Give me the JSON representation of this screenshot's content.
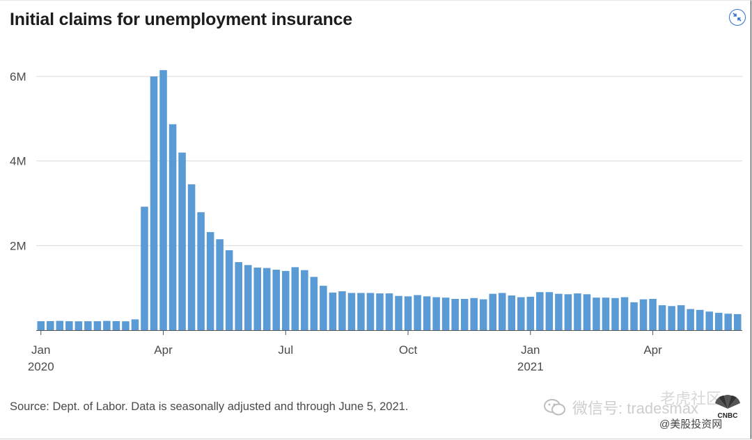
{
  "title": "Initial claims for unemployment insurance",
  "source": "Source: Dept. of Labor. Data is seasonally adjusted and through June 5, 2021.",
  "watermark": {
    "wechat": "微信号: tradesmax",
    "community": "老虎社区",
    "site": "@美股投资网",
    "logo": "CNBC"
  },
  "colors": {
    "bar": "#5b9bd5",
    "grid": "#d9d9d9",
    "text": "#4a4a4a",
    "accent": "#2f6fd0"
  },
  "chart_data": {
    "type": "bar",
    "title": "Initial claims for unemployment insurance",
    "xlabel": "",
    "ylabel": "",
    "ylim": [
      0,
      6000000
    ],
    "yticks": [
      {
        "value": 2000000,
        "label": "2M"
      },
      {
        "value": 4000000,
        "label": "4M"
      },
      {
        "value": 6000000,
        "label": "6M"
      }
    ],
    "xticks": [
      {
        "index": 0,
        "label": "Jan",
        "sublabel": "2020"
      },
      {
        "index": 13,
        "label": "Apr",
        "sublabel": ""
      },
      {
        "index": 26,
        "label": "Jul",
        "sublabel": ""
      },
      {
        "index": 39,
        "label": "Oct",
        "sublabel": ""
      },
      {
        "index": 52,
        "label": "Jan",
        "sublabel": "2021"
      },
      {
        "index": 65,
        "label": "Apr",
        "sublabel": ""
      }
    ],
    "grid": true,
    "legend": "none",
    "series": [
      {
        "values": [
          212000,
          215000,
          220000,
          212000,
          210000,
          212000,
          212000,
          219000,
          214000,
          210000,
          256000,
          2920000,
          6000000,
          6150000,
          4870000,
          4200000,
          3450000,
          2790000,
          2320000,
          2150000,
          1890000,
          1610000,
          1540000,
          1480000,
          1470000,
          1430000,
          1400000,
          1490000,
          1420000,
          1260000,
          1050000,
          890000,
          920000,
          880000,
          880000,
          880000,
          870000,
          870000,
          810000,
          800000,
          830000,
          800000,
          780000,
          770000,
          740000,
          740000,
          760000,
          730000,
          860000,
          880000,
          820000,
          780000,
          790000,
          900000,
          900000,
          860000,
          850000,
          870000,
          850000,
          770000,
          770000,
          760000,
          780000,
          660000,
          730000,
          740000,
          590000,
          570000,
          590000,
          500000,
          480000,
          440000,
          410000,
          390000,
          380000
        ]
      }
    ]
  }
}
